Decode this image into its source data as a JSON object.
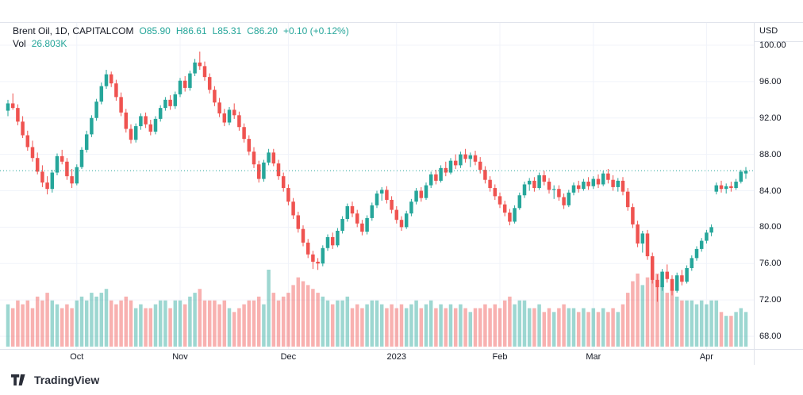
{
  "header": {
    "symbol_title": "Brent Oil, 1D, CAPITALCOM",
    "ohlc": {
      "open": "O85.90",
      "high": "H86.61",
      "low": "L85.31",
      "close": "C86.20",
      "change": "+0.10 (+0.12%)"
    },
    "volume_label": "Vol",
    "volume_value": "26.803K"
  },
  "axes": {
    "currency": "USD"
  },
  "footer": {
    "brand": "TradingView"
  },
  "colors": {
    "up": "#26a69a",
    "down": "#ef5350",
    "vol_up": "rgba(38,166,154,0.45)",
    "vol_down": "rgba(239,83,80,0.45)",
    "grid": "#f0f3fa",
    "axis_border": "#e0e3eb",
    "text": "#131722"
  },
  "chart_data": {
    "type": "candlestick+volume",
    "title": "Brent Oil, 1D, CAPITALCOM",
    "symbol": "Brent Oil",
    "interval": "1D",
    "exchange": "CAPITALCOM",
    "last": {
      "open": 85.9,
      "high": 86.61,
      "low": 85.31,
      "close": 86.2,
      "change": 0.1,
      "change_pct": 0.12,
      "volume": "26.803K"
    },
    "last_price_line": 86.2,
    "y_axis": {
      "min": 68,
      "max": 100,
      "tick_step": 4,
      "currency": "USD",
      "ticks": [
        "100.00",
        "96.00",
        "92.00",
        "88.00",
        "84.00",
        "80.00",
        "76.00",
        "72.00",
        "68.00"
      ]
    },
    "x_axis_labels": [
      {
        "text": "Oct",
        "index": 14
      },
      {
        "text": "Nov",
        "index": 35
      },
      {
        "text": "Dec",
        "index": 57
      },
      {
        "text": "2023",
        "index": 79
      },
      {
        "text": "Feb",
        "index": 100
      },
      {
        "text": "Mar",
        "index": 119
      },
      {
        "text": "Apr",
        "index": 142
      }
    ],
    "candles_format": [
      "open",
      "high",
      "low",
      "close",
      "relative_volume"
    ],
    "candles": [
      [
        92.8,
        94.0,
        92.2,
        93.6,
        0.55
      ],
      [
        93.6,
        94.7,
        92.9,
        93.1,
        0.5
      ],
      [
        93.1,
        93.5,
        91.2,
        91.6,
        0.6
      ],
      [
        91.6,
        92.2,
        89.8,
        90.1,
        0.55
      ],
      [
        90.1,
        90.6,
        88.4,
        88.8,
        0.6
      ],
      [
        88.8,
        89.5,
        87.2,
        87.6,
        0.5
      ],
      [
        87.6,
        88.2,
        85.8,
        86.1,
        0.65
      ],
      [
        86.1,
        86.8,
        84.4,
        84.9,
        0.6
      ],
      [
        84.9,
        85.6,
        83.6,
        84.2,
        0.7
      ],
      [
        84.2,
        86.3,
        83.8,
        86.0,
        0.6
      ],
      [
        86.0,
        88.1,
        85.7,
        87.8,
        0.55
      ],
      [
        87.8,
        88.5,
        86.9,
        87.2,
        0.5
      ],
      [
        87.2,
        87.6,
        85.2,
        85.6,
        0.55
      ],
      [
        85.6,
        86.4,
        84.3,
        84.8,
        0.5
      ],
      [
        84.8,
        86.9,
        84.6,
        86.6,
        0.6
      ],
      [
        86.6,
        88.8,
        86.4,
        88.5,
        0.65
      ],
      [
        88.5,
        90.6,
        88.2,
        90.2,
        0.6
      ],
      [
        90.2,
        92.3,
        89.9,
        92.0,
        0.7
      ],
      [
        92.0,
        94.1,
        91.7,
        93.8,
        0.65
      ],
      [
        93.8,
        95.9,
        93.5,
        95.5,
        0.7
      ],
      [
        95.5,
        97.3,
        95.2,
        96.8,
        0.75
      ],
      [
        96.8,
        97.1,
        95.4,
        95.8,
        0.6
      ],
      [
        95.8,
        96.2,
        93.9,
        94.3,
        0.55
      ],
      [
        94.3,
        94.8,
        92.2,
        92.6,
        0.6
      ],
      [
        92.6,
        93.0,
        90.4,
        90.8,
        0.65
      ],
      [
        90.8,
        91.3,
        89.2,
        89.6,
        0.6
      ],
      [
        89.6,
        91.4,
        89.3,
        91.1,
        0.5
      ],
      [
        91.1,
        92.5,
        90.7,
        92.2,
        0.55
      ],
      [
        92.2,
        92.6,
        90.9,
        91.3,
        0.5
      ],
      [
        91.3,
        91.8,
        90.1,
        90.5,
        0.5
      ],
      [
        90.5,
        92.2,
        90.2,
        91.9,
        0.55
      ],
      [
        91.9,
        93.4,
        91.6,
        93.1,
        0.6
      ],
      [
        93.1,
        94.3,
        92.8,
        94.0,
        0.6
      ],
      [
        94.0,
        94.5,
        92.9,
        93.3,
        0.5
      ],
      [
        93.3,
        94.9,
        93.0,
        94.6,
        0.6
      ],
      [
        94.6,
        96.4,
        94.3,
        96.1,
        0.6
      ],
      [
        96.1,
        96.6,
        94.9,
        95.3,
        0.55
      ],
      [
        95.3,
        97.2,
        95.0,
        96.9,
        0.65
      ],
      [
        96.9,
        98.5,
        96.6,
        98.1,
        0.7
      ],
      [
        98.1,
        99.3,
        97.3,
        97.7,
        0.75
      ],
      [
        97.7,
        98.2,
        96.1,
        96.5,
        0.6
      ],
      [
        96.5,
        96.9,
        94.7,
        95.1,
        0.6
      ],
      [
        95.1,
        95.5,
        93.3,
        93.7,
        0.6
      ],
      [
        93.7,
        94.2,
        92.1,
        92.5,
        0.55
      ],
      [
        92.5,
        93.0,
        91.1,
        91.5,
        0.6
      ],
      [
        91.5,
        93.2,
        91.2,
        92.9,
        0.5
      ],
      [
        92.9,
        93.6,
        91.9,
        92.3,
        0.45
      ],
      [
        92.3,
        92.7,
        90.6,
        91.0,
        0.5
      ],
      [
        91.0,
        91.4,
        89.3,
        89.7,
        0.55
      ],
      [
        89.7,
        90.1,
        87.9,
        88.3,
        0.6
      ],
      [
        88.3,
        88.8,
        86.5,
        86.9,
        0.6
      ],
      [
        86.9,
        87.3,
        84.9,
        85.3,
        0.65
      ],
      [
        85.3,
        87.4,
        85.0,
        87.1,
        0.55
      ],
      [
        87.1,
        88.6,
        86.8,
        88.2,
        1.0
      ],
      [
        88.2,
        88.6,
        86.7,
        87.0,
        0.7
      ],
      [
        87.0,
        87.4,
        85.2,
        85.6,
        0.6
      ],
      [
        85.6,
        86.0,
        83.9,
        84.3,
        0.65
      ],
      [
        84.3,
        84.7,
        82.4,
        82.8,
        0.7
      ],
      [
        82.8,
        83.2,
        80.9,
        81.3,
        0.8
      ],
      [
        81.3,
        81.7,
        79.4,
        79.8,
        0.9
      ],
      [
        79.8,
        80.2,
        77.9,
        78.3,
        0.85
      ],
      [
        78.3,
        78.7,
        76.6,
        77.0,
        0.8
      ],
      [
        77.0,
        77.4,
        75.4,
        76.2,
        0.75
      ],
      [
        76.2,
        76.6,
        75.3,
        76.0,
        0.7
      ],
      [
        76.0,
        78.0,
        75.7,
        77.7,
        0.65
      ],
      [
        77.7,
        79.2,
        77.4,
        78.9,
        0.6
      ],
      [
        78.9,
        79.4,
        77.6,
        78.0,
        0.55
      ],
      [
        78.0,
        79.9,
        77.8,
        79.6,
        0.6
      ],
      [
        79.6,
        81.2,
        79.3,
        80.9,
        0.6
      ],
      [
        80.9,
        82.6,
        80.6,
        82.3,
        0.65
      ],
      [
        82.3,
        82.8,
        81.1,
        81.5,
        0.5
      ],
      [
        81.5,
        81.9,
        80.0,
        80.4,
        0.55
      ],
      [
        80.4,
        80.8,
        79.1,
        79.5,
        0.5
      ],
      [
        79.5,
        81.3,
        79.2,
        81.0,
        0.55
      ],
      [
        81.0,
        82.7,
        80.7,
        82.4,
        0.6
      ],
      [
        82.4,
        84.0,
        82.1,
        83.7,
        0.6
      ],
      [
        83.7,
        84.4,
        82.9,
        84.1,
        0.55
      ],
      [
        84.1,
        84.5,
        82.6,
        83.0,
        0.5
      ],
      [
        83.0,
        83.4,
        81.5,
        81.9,
        0.55
      ],
      [
        81.9,
        82.3,
        80.4,
        80.8,
        0.5
      ],
      [
        80.8,
        81.2,
        79.6,
        80.0,
        0.55
      ],
      [
        80.0,
        81.8,
        79.8,
        81.5,
        0.5
      ],
      [
        81.5,
        83.1,
        81.2,
        82.8,
        0.55
      ],
      [
        82.8,
        84.3,
        82.5,
        84.0,
        0.6
      ],
      [
        84.0,
        84.4,
        82.8,
        83.2,
        0.5
      ],
      [
        83.2,
        84.9,
        83.0,
        84.6,
        0.55
      ],
      [
        84.6,
        86.1,
        84.3,
        85.8,
        0.6
      ],
      [
        85.8,
        86.3,
        84.7,
        85.1,
        0.5
      ],
      [
        85.1,
        86.8,
        84.9,
        86.5,
        0.55
      ],
      [
        86.5,
        87.2,
        85.6,
        86.0,
        0.5
      ],
      [
        86.0,
        87.6,
        85.8,
        87.3,
        0.55
      ],
      [
        87.3,
        88.0,
        86.4,
        86.8,
        0.5
      ],
      [
        86.8,
        88.3,
        86.5,
        88.0,
        0.55
      ],
      [
        88.0,
        88.6,
        87.1,
        87.5,
        0.5
      ],
      [
        87.5,
        88.2,
        86.6,
        87.9,
        0.45
      ],
      [
        87.9,
        88.4,
        86.8,
        87.2,
        0.5
      ],
      [
        87.2,
        87.7,
        85.9,
        86.3,
        0.5
      ],
      [
        86.3,
        86.7,
        84.8,
        85.2,
        0.55
      ],
      [
        85.2,
        85.6,
        83.9,
        84.3,
        0.5
      ],
      [
        84.3,
        84.7,
        83.0,
        83.4,
        0.55
      ],
      [
        83.4,
        83.8,
        82.1,
        82.5,
        0.5
      ],
      [
        82.5,
        82.9,
        81.2,
        81.6,
        0.6
      ],
      [
        81.6,
        82.0,
        80.2,
        80.6,
        0.65
      ],
      [
        80.6,
        82.4,
        80.4,
        82.1,
        0.55
      ],
      [
        82.1,
        83.8,
        81.9,
        83.5,
        0.6
      ],
      [
        83.5,
        85.0,
        83.2,
        84.7,
        0.6
      ],
      [
        84.7,
        85.4,
        84.0,
        85.1,
        0.5
      ],
      [
        85.1,
        85.5,
        83.9,
        84.3,
        0.5
      ],
      [
        84.3,
        86.0,
        84.1,
        85.7,
        0.55
      ],
      [
        85.7,
        86.2,
        84.6,
        85.0,
        0.45
      ],
      [
        85.0,
        85.4,
        83.7,
        84.1,
        0.5
      ],
      [
        84.1,
        84.6,
        83.1,
        84.2,
        0.45
      ],
      [
        84.2,
        84.6,
        82.9,
        83.3,
        0.5
      ],
      [
        83.3,
        83.7,
        82.0,
        82.4,
        0.55
      ],
      [
        82.4,
        84.1,
        82.2,
        83.8,
        0.5
      ],
      [
        83.8,
        84.9,
        83.5,
        84.6,
        0.5
      ],
      [
        84.6,
        85.1,
        83.8,
        84.2,
        0.45
      ],
      [
        84.2,
        85.3,
        84.0,
        85.0,
        0.5
      ],
      [
        85.0,
        85.5,
        84.1,
        84.5,
        0.45
      ],
      [
        84.5,
        85.6,
        84.2,
        85.3,
        0.5
      ],
      [
        85.3,
        85.8,
        84.3,
        84.7,
        0.45
      ],
      [
        84.7,
        86.2,
        84.5,
        85.9,
        0.5
      ],
      [
        85.9,
        86.4,
        84.8,
        85.2,
        0.45
      ],
      [
        85.2,
        85.7,
        84.0,
        84.4,
        0.5
      ],
      [
        84.4,
        85.4,
        83.9,
        85.1,
        0.45
      ],
      [
        85.1,
        85.5,
        83.5,
        83.9,
        0.55
      ],
      [
        83.9,
        84.3,
        81.8,
        82.2,
        0.7
      ],
      [
        82.2,
        82.6,
        79.9,
        80.3,
        0.85
      ],
      [
        80.3,
        80.7,
        77.8,
        78.2,
        0.95
      ],
      [
        78.2,
        79.6,
        77.2,
        79.3,
        0.8
      ],
      [
        79.3,
        79.7,
        76.4,
        76.8,
        0.9
      ],
      [
        76.8,
        77.2,
        73.8,
        74.2,
        1.0
      ],
      [
        74.2,
        74.8,
        71.8,
        73.4,
        0.95
      ],
      [
        73.4,
        75.4,
        73.0,
        75.1,
        0.8
      ],
      [
        75.1,
        75.9,
        73.9,
        74.3,
        0.7
      ],
      [
        74.3,
        74.7,
        72.5,
        73.0,
        0.75
      ],
      [
        73.0,
        75.0,
        72.8,
        74.7,
        0.65
      ],
      [
        74.7,
        75.3,
        73.6,
        74.0,
        0.6
      ],
      [
        74.0,
        75.8,
        73.8,
        75.5,
        0.6
      ],
      [
        75.5,
        76.9,
        75.2,
        76.6,
        0.6
      ],
      [
        76.6,
        77.9,
        76.3,
        77.6,
        0.55
      ],
      [
        77.6,
        78.8,
        77.3,
        78.5,
        0.6
      ],
      [
        78.5,
        79.7,
        78.2,
        79.4,
        0.55
      ],
      [
        79.4,
        80.3,
        79.0,
        80.0,
        0.6
      ],
      [
        83.9,
        84.9,
        83.6,
        84.6,
        0.6
      ],
      [
        84.6,
        85.1,
        83.8,
        84.2,
        0.45
      ],
      [
        84.2,
        84.8,
        83.7,
        84.5,
        0.4
      ],
      [
        84.5,
        85.0,
        83.9,
        84.3,
        0.4
      ],
      [
        84.3,
        85.3,
        84.1,
        85.0,
        0.45
      ],
      [
        85.0,
        86.3,
        84.8,
        86.1,
        0.5
      ],
      [
        85.9,
        86.61,
        85.31,
        86.2,
        0.45
      ]
    ]
  }
}
